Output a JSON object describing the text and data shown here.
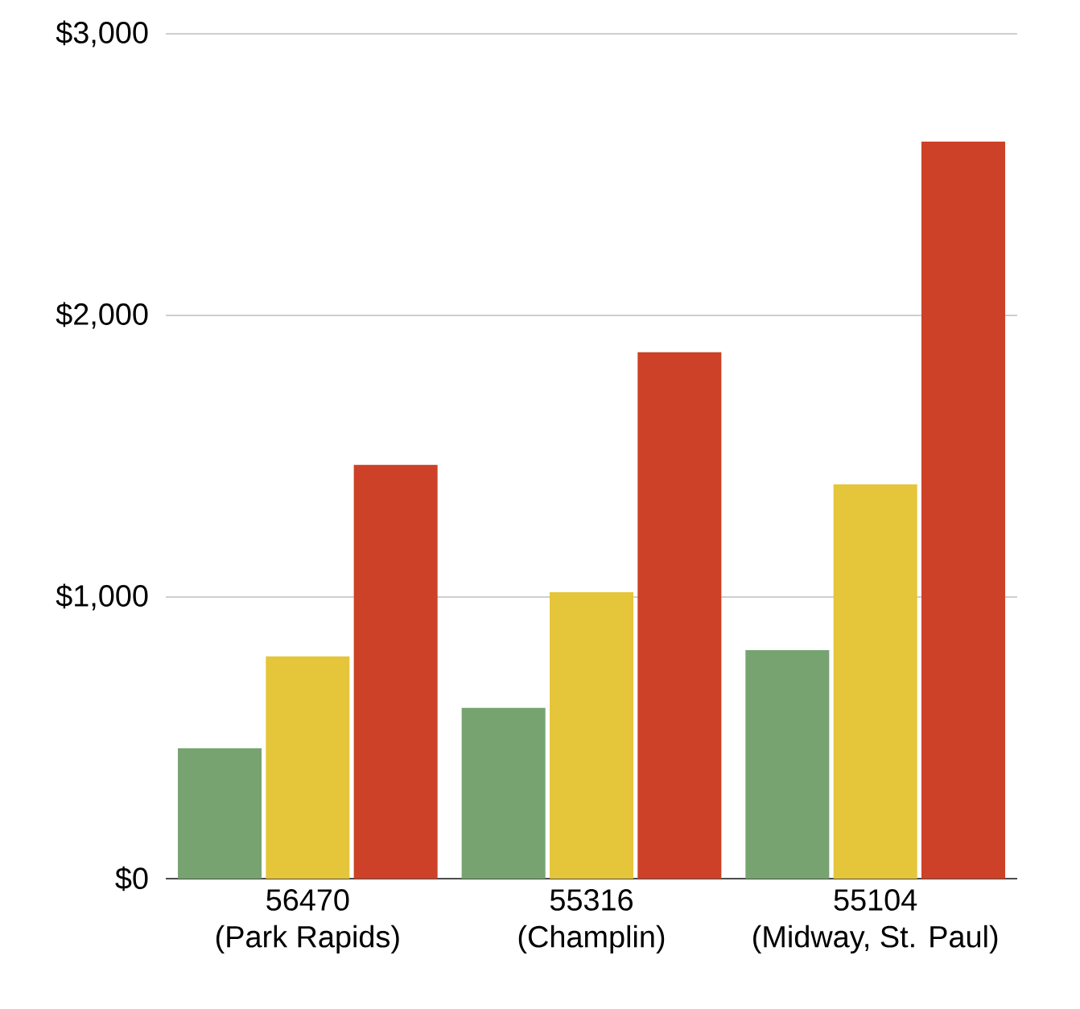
{
  "chart_data": {
    "type": "bar",
    "categories": [
      "56470\n(Park Rapids)",
      "55316\n(Champlin)",
      "55104\n(Midway, St. Paul)"
    ],
    "series": [
      {
        "color": "#77a371",
        "values": [
          463,
          606,
          811
        ]
      },
      {
        "color": "#e5c53a",
        "values": [
          789,
          1017,
          1400
        ]
      },
      {
        "color": "#cc4127",
        "values": [
          1469,
          1869,
          2617
        ]
      }
    ],
    "ylim": [
      0,
      3000
    ],
    "yticks": [
      {
        "value": 0,
        "label": "$0"
      },
      {
        "value": 1000,
        "label": "$1,000"
      },
      {
        "value": 2000,
        "label": "$2,000"
      },
      {
        "value": 3000,
        "label": "$3,000"
      }
    ],
    "grid": "y"
  }
}
